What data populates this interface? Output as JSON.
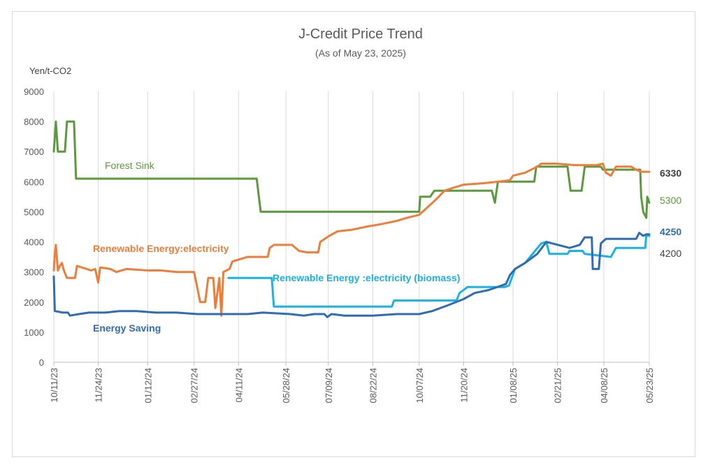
{
  "chart_data": {
    "type": "line",
    "title": "J-Credit Price Trend",
    "subtitle": "(As of May 23, 2025)",
    "ylabel": "Yen/t-CO2",
    "xlabel": "",
    "ylim": [
      0,
      9000
    ],
    "yticks": [
      0,
      1000,
      2000,
      3000,
      4000,
      5000,
      6000,
      7000,
      8000,
      9000
    ],
    "xlim": [
      "2023-10-11",
      "2025-05-23"
    ],
    "xticks": [
      "10/11/23",
      "11/24/23",
      "01/12/24",
      "02/27/24",
      "04/11/24",
      "05/28/24",
      "07/09/24",
      "08/22/24",
      "10/07/24",
      "11/20/24",
      "01/08/25",
      "02/21/25",
      "04/08/25",
      "05/23/25"
    ],
    "grid": "vertical",
    "legend": "inline labels",
    "series": [
      {
        "name": "Forest Sink",
        "color": "#5a9a3c",
        "end_label": "5300",
        "points": [
          [
            "2023-10-11",
            7000
          ],
          [
            "2023-10-13",
            8000
          ],
          [
            "2023-10-15",
            7000
          ],
          [
            "2023-10-22",
            7000
          ],
          [
            "2023-10-24",
            8000
          ],
          [
            "2023-10-31",
            8000
          ],
          [
            "2023-11-02",
            6100
          ],
          [
            "2024-04-29",
            6100
          ],
          [
            "2024-05-03",
            5000
          ],
          [
            "2024-10-07",
            5000
          ],
          [
            "2024-10-08",
            5500
          ],
          [
            "2024-10-18",
            5500
          ],
          [
            "2024-10-22",
            5700
          ],
          [
            "2024-12-18",
            5700
          ],
          [
            "2024-12-21",
            5300
          ],
          [
            "2024-12-24",
            6000
          ],
          [
            "2025-01-29",
            6000
          ],
          [
            "2025-01-31",
            6500
          ],
          [
            "2025-03-03",
            6500
          ],
          [
            "2025-03-06",
            5700
          ],
          [
            "2025-03-17",
            5700
          ],
          [
            "2025-03-20",
            6500
          ],
          [
            "2025-04-05",
            6500
          ],
          [
            "2025-04-07",
            6400
          ],
          [
            "2025-05-14",
            6400
          ],
          [
            "2025-05-15",
            5500
          ],
          [
            "2025-05-17",
            5000
          ],
          [
            "2025-05-20",
            4800
          ],
          [
            "2025-05-21",
            5500
          ],
          [
            "2025-05-23",
            5300
          ]
        ]
      },
      {
        "name": "Renewable Energy:electricity",
        "color": "#ee7d3a",
        "end_label": "6330",
        "points": [
          [
            "2023-10-11",
            3050
          ],
          [
            "2023-10-12",
            3600
          ],
          [
            "2023-10-13",
            3900
          ],
          [
            "2023-10-15",
            3050
          ],
          [
            "2023-10-17",
            3200
          ],
          [
            "2023-10-19",
            3300
          ],
          [
            "2023-10-21",
            3050
          ],
          [
            "2023-10-24",
            2800
          ],
          [
            "2023-11-01",
            2800
          ],
          [
            "2023-11-03",
            3200
          ],
          [
            "2023-11-17",
            3050
          ],
          [
            "2023-11-21",
            3100
          ],
          [
            "2023-11-24",
            2650
          ],
          [
            "2023-11-26",
            3150
          ],
          [
            "2023-12-06",
            3100
          ],
          [
            "2023-12-12",
            3000
          ],
          [
            "2023-12-22",
            3100
          ],
          [
            "2024-01-12",
            3050
          ],
          [
            "2024-01-25",
            3050
          ],
          [
            "2024-02-10",
            3000
          ],
          [
            "2024-02-27",
            3000
          ],
          [
            "2024-03-04",
            2000
          ],
          [
            "2024-03-09",
            2000
          ],
          [
            "2024-03-12",
            2800
          ],
          [
            "2024-03-17",
            2800
          ],
          [
            "2024-03-19",
            1800
          ],
          [
            "2024-03-23",
            2800
          ],
          [
            "2024-03-25",
            1550
          ],
          [
            "2024-03-27",
            3000
          ],
          [
            "2024-04-02",
            3100
          ],
          [
            "2024-04-05",
            3350
          ],
          [
            "2024-04-10",
            3400
          ],
          [
            "2024-04-15",
            3450
          ],
          [
            "2024-04-20",
            3500
          ],
          [
            "2024-05-10",
            3500
          ],
          [
            "2024-05-12",
            3800
          ],
          [
            "2024-05-16",
            3900
          ],
          [
            "2024-06-03",
            3900
          ],
          [
            "2024-06-10",
            3700
          ],
          [
            "2024-06-18",
            3650
          ],
          [
            "2024-06-29",
            3650
          ],
          [
            "2024-07-01",
            4000
          ],
          [
            "2024-07-10",
            4200
          ],
          [
            "2024-07-18",
            4350
          ],
          [
            "2024-08-01",
            4400
          ],
          [
            "2024-08-15",
            4500
          ],
          [
            "2024-09-01",
            4600
          ],
          [
            "2024-09-15",
            4700
          ],
          [
            "2024-09-25",
            4800
          ],
          [
            "2024-10-07",
            4900
          ],
          [
            "2024-10-17",
            5200
          ],
          [
            "2024-10-25",
            5450
          ],
          [
            "2024-11-01",
            5700
          ],
          [
            "2024-11-10",
            5800
          ],
          [
            "2024-11-20",
            5900
          ],
          [
            "2024-12-10",
            5950
          ],
          [
            "2024-12-25",
            6000
          ],
          [
            "2025-01-05",
            6050
          ],
          [
            "2025-01-08",
            6200
          ],
          [
            "2025-01-20",
            6300
          ],
          [
            "2025-02-01",
            6500
          ],
          [
            "2025-02-05",
            6600
          ],
          [
            "2025-02-20",
            6600
          ],
          [
            "2025-03-10",
            6550
          ],
          [
            "2025-04-01",
            6550
          ],
          [
            "2025-04-07",
            6600
          ],
          [
            "2025-04-10",
            6300
          ],
          [
            "2025-04-15",
            6200
          ],
          [
            "2025-04-20",
            6500
          ],
          [
            "2025-05-05",
            6500
          ],
          [
            "2025-05-10",
            6400
          ],
          [
            "2025-05-15",
            6330
          ],
          [
            "2025-05-23",
            6330
          ]
        ]
      },
      {
        "name": "Renewable Energy :electricity (biomass)",
        "color": "#19b2e6",
        "end_label": "4200",
        "points": [
          [
            "2024-04-01",
            2800
          ],
          [
            "2024-05-14",
            2800
          ],
          [
            "2024-05-16",
            1850
          ],
          [
            "2024-09-10",
            1850
          ],
          [
            "2024-09-12",
            2050
          ],
          [
            "2024-11-13",
            2050
          ],
          [
            "2024-11-16",
            2300
          ],
          [
            "2024-11-24",
            2500
          ],
          [
            "2024-12-31",
            2500
          ],
          [
            "2025-01-04",
            2550
          ],
          [
            "2025-01-10",
            3100
          ],
          [
            "2025-01-20",
            3300
          ],
          [
            "2025-02-05",
            3950
          ],
          [
            "2025-02-10",
            4000
          ],
          [
            "2025-02-13",
            3600
          ],
          [
            "2025-03-03",
            3600
          ],
          [
            "2025-03-05",
            3700
          ],
          [
            "2025-03-18",
            3700
          ],
          [
            "2025-03-20",
            3600
          ],
          [
            "2025-04-15",
            3500
          ],
          [
            "2025-04-20",
            3800
          ],
          [
            "2025-05-19",
            3800
          ],
          [
            "2025-05-20",
            4200
          ],
          [
            "2025-05-23",
            4200
          ]
        ]
      },
      {
        "name": "Energy Saving",
        "color": "#2f6cb3",
        "end_label": "4250",
        "points": [
          [
            "2023-10-11",
            2850
          ],
          [
            "2023-10-12",
            1700
          ],
          [
            "2023-10-20",
            1650
          ],
          [
            "2023-10-25",
            1650
          ],
          [
            "2023-10-27",
            1550
          ],
          [
            "2023-11-05",
            1600
          ],
          [
            "2023-11-15",
            1650
          ],
          [
            "2023-12-01",
            1650
          ],
          [
            "2023-12-15",
            1700
          ],
          [
            "2024-01-01",
            1700
          ],
          [
            "2024-01-20",
            1650
          ],
          [
            "2024-02-10",
            1650
          ],
          [
            "2024-03-01",
            1600
          ],
          [
            "2024-04-01",
            1600
          ],
          [
            "2024-04-20",
            1600
          ],
          [
            "2024-05-05",
            1650
          ],
          [
            "2024-06-01",
            1600
          ],
          [
            "2024-06-15",
            1550
          ],
          [
            "2024-06-25",
            1600
          ],
          [
            "2024-07-05",
            1600
          ],
          [
            "2024-07-08",
            1500
          ],
          [
            "2024-07-12",
            1600
          ],
          [
            "2024-07-25",
            1550
          ],
          [
            "2024-08-22",
            1550
          ],
          [
            "2024-09-15",
            1600
          ],
          [
            "2024-10-07",
            1600
          ],
          [
            "2024-10-20",
            1700
          ],
          [
            "2024-11-05",
            1900
          ],
          [
            "2024-11-20",
            2100
          ],
          [
            "2024-12-01",
            2300
          ],
          [
            "2024-12-15",
            2400
          ],
          [
            "2025-01-01",
            2600
          ],
          [
            "2025-01-05",
            2900
          ],
          [
            "2025-01-10",
            3100
          ],
          [
            "2025-01-20",
            3300
          ],
          [
            "2025-02-01",
            3600
          ],
          [
            "2025-02-10",
            4000
          ],
          [
            "2025-03-05",
            3800
          ],
          [
            "2025-03-15",
            3900
          ],
          [
            "2025-03-20",
            4150
          ],
          [
            "2025-03-27",
            4150
          ],
          [
            "2025-03-28",
            3100
          ],
          [
            "2025-04-03",
            3100
          ],
          [
            "2025-04-05",
            3950
          ],
          [
            "2025-04-10",
            4100
          ],
          [
            "2025-05-10",
            4100
          ],
          [
            "2025-05-13",
            4300
          ],
          [
            "2025-05-17",
            4200
          ],
          [
            "2025-05-20",
            4250
          ],
          [
            "2025-05-23",
            4250
          ]
        ]
      }
    ],
    "annotations": [
      {
        "text": "Forest Sink",
        "series": 0
      },
      {
        "text": "Renewable Energy:electricity",
        "series": 1
      },
      {
        "text": "Renewable Energy :electricity (biomass)",
        "series": 2
      },
      {
        "text": "Energy Saving",
        "series": 3
      }
    ]
  }
}
